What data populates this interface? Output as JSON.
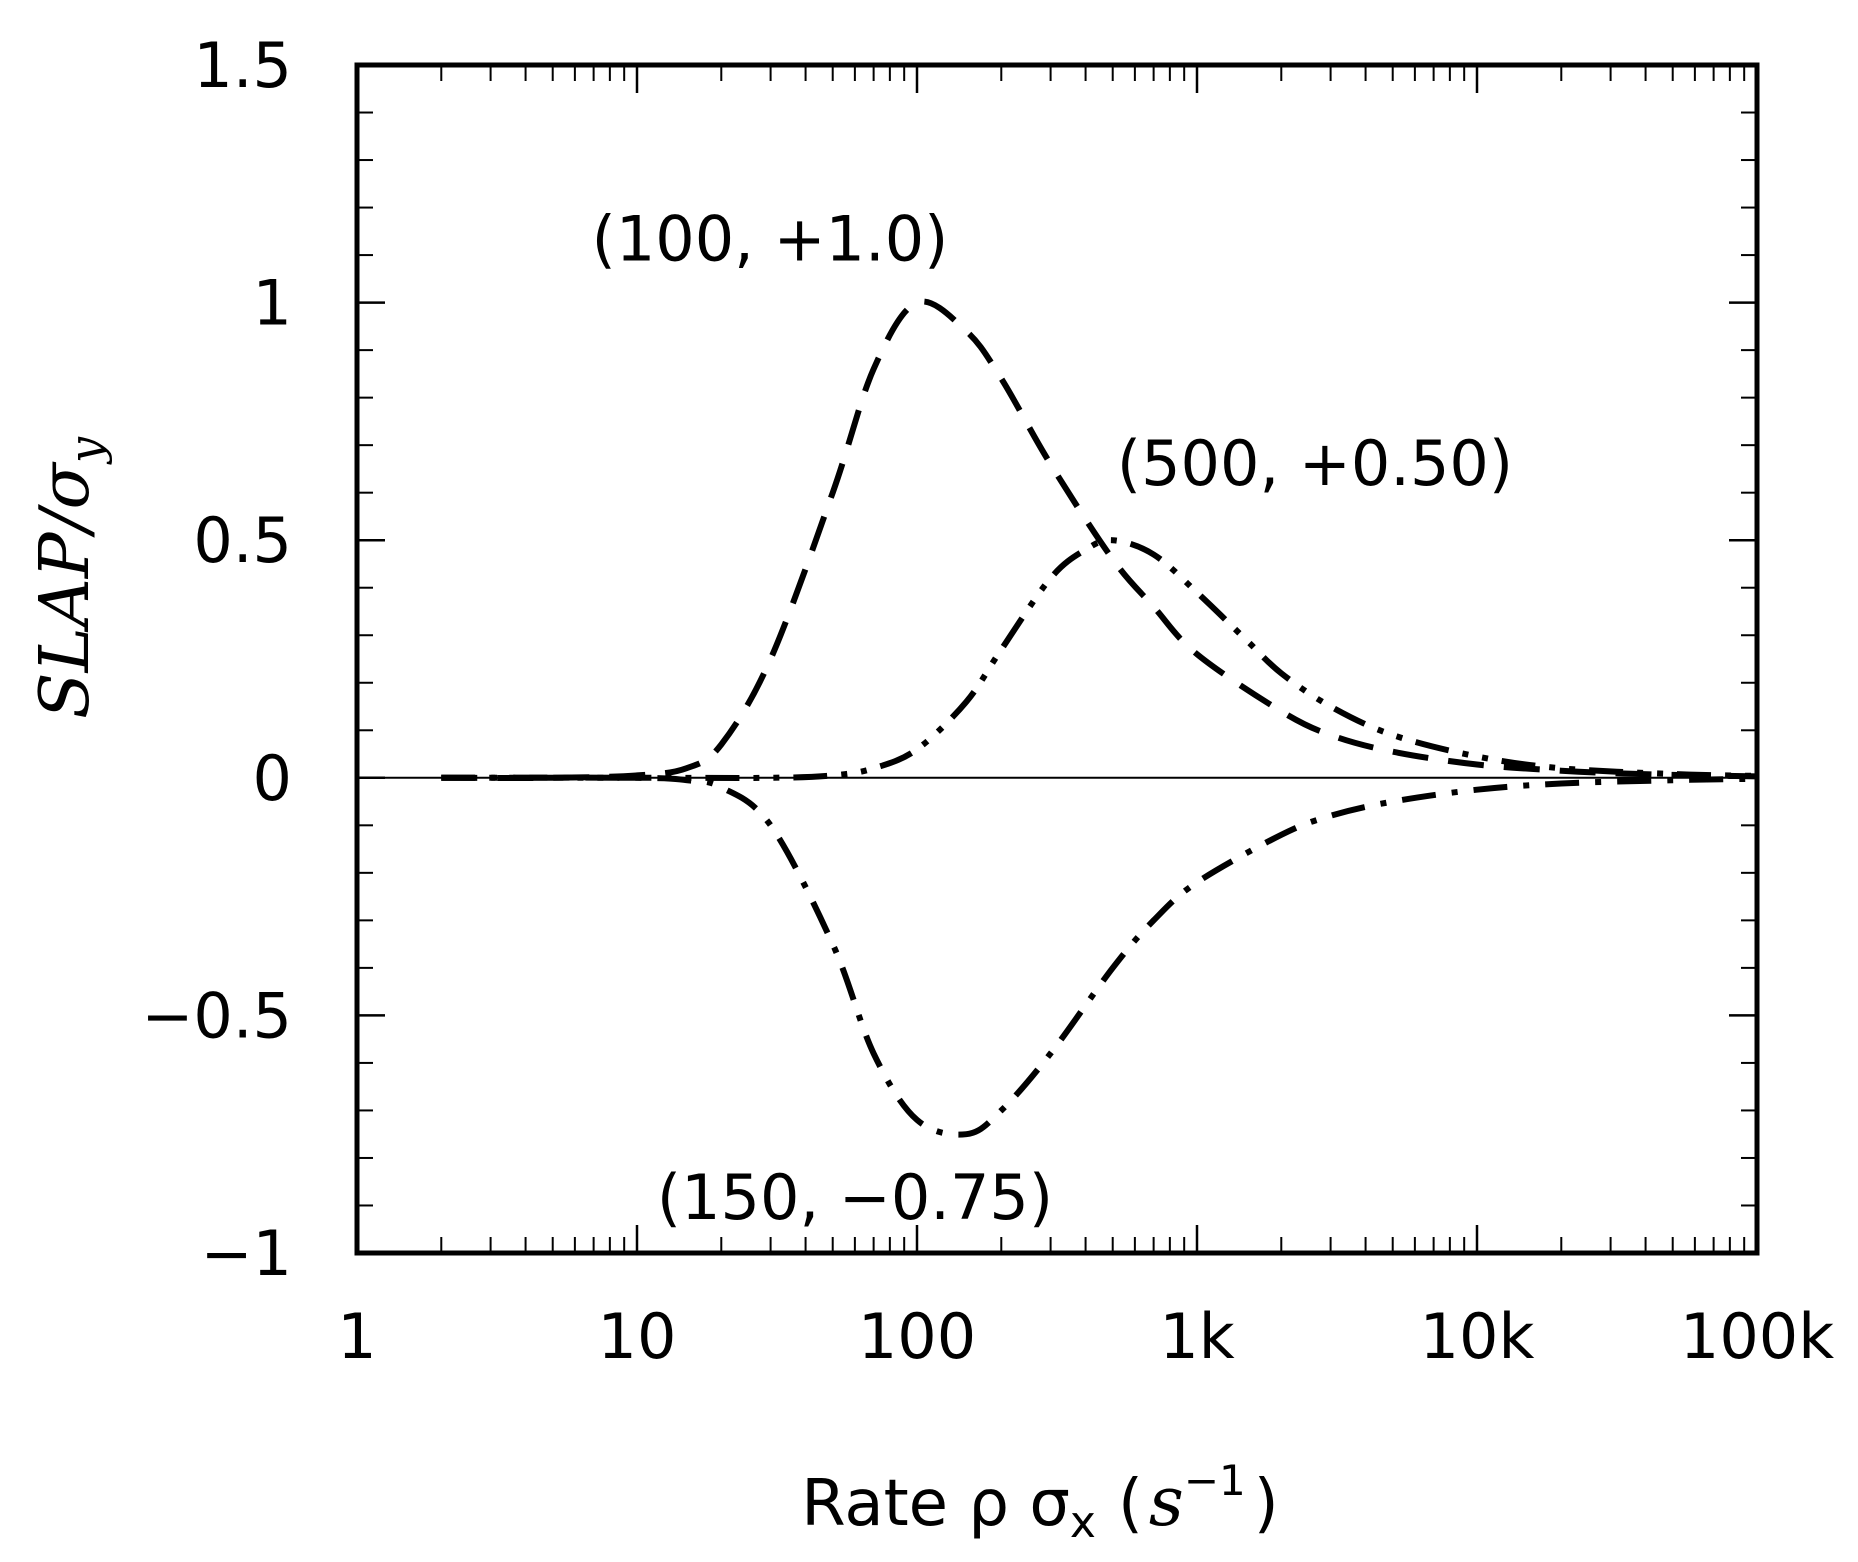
{
  "chart_data": {
    "type": "line",
    "title": "",
    "xlabel": {
      "text": "Rate ρ σ",
      "subscript": "x",
      "unit_open": "(",
      "unit_base": "s",
      "unit_exponent": "−1",
      "unit_close": ")"
    },
    "ylabel": {
      "base": "SLAP/σ",
      "subscript": "y"
    },
    "x_scale": "log",
    "xlim": [
      1,
      100000
    ],
    "ylim": [
      -1,
      1.5
    ],
    "x_ticks": [
      {
        "value": 1,
        "label": "1"
      },
      {
        "value": 10,
        "label": "10"
      },
      {
        "value": 100,
        "label": "100"
      },
      {
        "value": 1000,
        "label": "1k"
      },
      {
        "value": 10000,
        "label": "10k"
      },
      {
        "value": 100000,
        "label": "100k"
      }
    ],
    "y_ticks": [
      {
        "value": 1.5,
        "label": "1.5"
      },
      {
        "value": 1,
        "label": "1"
      },
      {
        "value": 0.5,
        "label": "0.5"
      },
      {
        "value": 0,
        "label": "0"
      },
      {
        "value": -0.5,
        "label": "−0.5"
      },
      {
        "value": -1,
        "label": "−1"
      }
    ],
    "grid": false,
    "legend": "none",
    "zero_line": true,
    "series": [
      {
        "style": "dashed",
        "peak_x": 100,
        "peak_y": 1.0,
        "x": [
          2,
          5,
          10,
          15,
          20,
          30,
          50,
          70,
          100,
          150,
          200,
          300,
          500,
          700,
          1000,
          2000,
          3000,
          5000,
          10000,
          20000,
          30000,
          50000,
          100000
        ],
        "y": [
          0,
          0,
          0.005,
          0.02,
          0.07,
          0.25,
          0.6,
          0.86,
          1.0,
          0.94,
          0.84,
          0.66,
          0.46,
          0.36,
          0.26,
          0.14,
          0.09,
          0.055,
          0.028,
          0.015,
          0.01,
          0.006,
          0.003
        ]
      },
      {
        "style": "dash-dot-dot",
        "peak_x": 500,
        "peak_y": 0.5,
        "x": [
          2,
          10,
          30,
          50,
          70,
          100,
          150,
          200,
          300,
          400,
          500,
          700,
          1000,
          1500,
          2000,
          3000,
          5000,
          10000,
          20000,
          50000,
          100000
        ],
        "y": [
          0,
          0,
          0,
          0.005,
          0.02,
          0.06,
          0.16,
          0.27,
          0.42,
          0.48,
          0.5,
          0.47,
          0.39,
          0.29,
          0.22,
          0.15,
          0.09,
          0.045,
          0.02,
          0.008,
          0.004
        ]
      },
      {
        "style": "dash-dot",
        "peak_x": 150,
        "peak_y": -0.75,
        "x": [
          2,
          10,
          15,
          20,
          30,
          50,
          70,
          100,
          150,
          200,
          300,
          500,
          700,
          1000,
          2000,
          3000,
          5000,
          10000,
          20000,
          50000,
          100000
        ],
        "y": [
          0,
          0,
          -0.005,
          -0.02,
          -0.1,
          -0.35,
          -0.58,
          -0.72,
          -0.75,
          -0.7,
          -0.58,
          -0.4,
          -0.3,
          -0.22,
          -0.12,
          -0.08,
          -0.05,
          -0.025,
          -0.012,
          -0.005,
          -0.002
        ]
      }
    ],
    "annotations": [
      {
        "text": "(100, +1.0)",
        "x": 100,
        "y": 1.0
      },
      {
        "text": "(500, +0.50)",
        "x": 500,
        "y": 0.5
      },
      {
        "text": "(150, −0.75)",
        "x": 150,
        "y": -0.75
      }
    ]
  }
}
